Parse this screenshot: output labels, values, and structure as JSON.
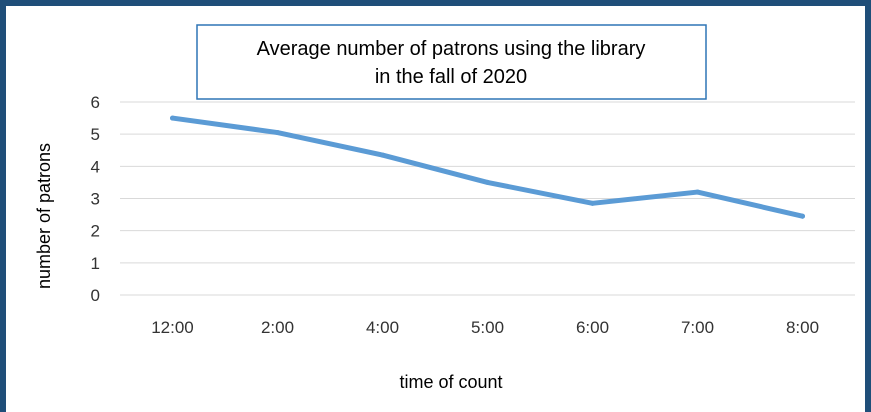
{
  "chart_data": {
    "type": "line",
    "title": "Average number of patrons using the library in the fall of 2020",
    "title_lines": [
      "Average number of patrons using the library",
      "in the fall of 2020"
    ],
    "xlabel": "time of count",
    "ylabel": "number of patrons",
    "categories": [
      "12:00",
      "2:00",
      "4:00",
      "5:00",
      "6:00",
      "7:00",
      "8:00"
    ],
    "series": [
      {
        "values": [
          5.5,
          5.05,
          4.35,
          3.5,
          2.85,
          3.2,
          2.45
        ],
        "color": "#5b9bd5"
      }
    ],
    "ylim": [
      0,
      6
    ],
    "yticks": [
      0,
      1,
      2,
      3,
      4,
      5,
      6
    ],
    "grid": true,
    "legend": "none",
    "colors": {
      "frame": "#1f4e79",
      "title_border": "#2e75b6",
      "grid": "#d9d9d9",
      "line": "#5b9bd5"
    }
  }
}
